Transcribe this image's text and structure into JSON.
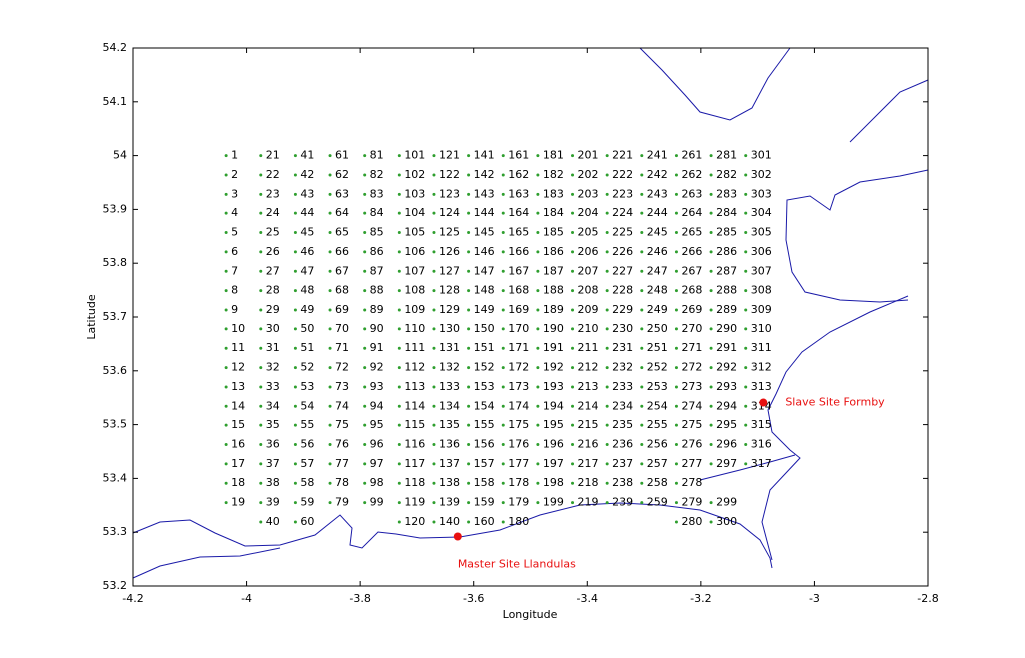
{
  "chart_data": {
    "type": "scatter",
    "x_label": "Longitude",
    "y_label": "Latitude",
    "xlim": [
      -4.2,
      -2.8
    ],
    "xticks": [
      -4.2,
      -4,
      -3.8,
      -3.6,
      -3.4,
      -3.2,
      -3,
      -2.8
    ],
    "ylim": [
      53.2,
      54.2
    ],
    "yticks": [
      53.2,
      53.3,
      53.4,
      53.5,
      53.6,
      53.7,
      53.8,
      53.9,
      54,
      54.1,
      54.2
    ],
    "point_color": "#2e9e2e",
    "label_color": "#000000",
    "site_color": "#e81010",
    "coast_color": "#1a1aa8",
    "lons": [
      -4.036,
      -3.975,
      -3.914,
      -3.853,
      -3.792,
      -3.731,
      -3.67,
      -3.609,
      -3.548,
      -3.487,
      -3.426,
      -3.365,
      -3.304,
      -3.243,
      -3.182,
      -3.121
    ],
    "lats": [
      54.0,
      53.964,
      53.928,
      53.893,
      53.857,
      53.821,
      53.785,
      53.749,
      53.713,
      53.678,
      53.642,
      53.606,
      53.57,
      53.534,
      53.499,
      53.463,
      53.427,
      53.391,
      53.355,
      53.319
    ],
    "point_labels": [
      [
        1,
        2,
        3,
        4,
        5,
        6,
        7,
        8,
        9,
        10,
        11,
        12,
        13,
        14,
        15,
        16,
        17,
        18,
        19,
        null
      ],
      [
        21,
        22,
        23,
        24,
        25,
        26,
        27,
        28,
        29,
        30,
        31,
        32,
        33,
        34,
        35,
        36,
        37,
        38,
        39,
        40
      ],
      [
        41,
        42,
        43,
        44,
        45,
        46,
        47,
        48,
        49,
        50,
        51,
        52,
        53,
        54,
        55,
        56,
        57,
        58,
        59,
        60
      ],
      [
        61,
        62,
        63,
        64,
        65,
        66,
        67,
        68,
        69,
        70,
        71,
        72,
        73,
        74,
        75,
        76,
        77,
        78,
        79,
        null
      ],
      [
        81,
        82,
        83,
        84,
        85,
        86,
        87,
        88,
        89,
        90,
        91,
        92,
        93,
        94,
        95,
        96,
        97,
        98,
        99,
        null
      ],
      [
        101,
        102,
        103,
        104,
        105,
        106,
        107,
        108,
        109,
        110,
        111,
        112,
        113,
        114,
        115,
        116,
        117,
        118,
        119,
        120
      ],
      [
        121,
        122,
        123,
        124,
        125,
        126,
        127,
        128,
        129,
        130,
        131,
        132,
        133,
        134,
        135,
        136,
        137,
        138,
        139,
        140
      ],
      [
        141,
        142,
        143,
        144,
        145,
        146,
        147,
        148,
        149,
        150,
        151,
        152,
        153,
        154,
        155,
        156,
        157,
        158,
        159,
        160
      ],
      [
        161,
        162,
        163,
        164,
        165,
        166,
        167,
        168,
        169,
        170,
        171,
        172,
        173,
        174,
        175,
        176,
        177,
        178,
        179,
        180
      ],
      [
        181,
        182,
        183,
        184,
        185,
        186,
        187,
        188,
        189,
        190,
        191,
        192,
        193,
        194,
        195,
        196,
        197,
        198,
        199,
        null
      ],
      [
        201,
        202,
        203,
        204,
        205,
        206,
        207,
        208,
        209,
        210,
        211,
        212,
        213,
        214,
        215,
        216,
        217,
        218,
        219,
        null
      ],
      [
        221,
        222,
        223,
        224,
        225,
        226,
        227,
        228,
        229,
        230,
        231,
        232,
        233,
        234,
        235,
        236,
        237,
        238,
        239,
        null
      ],
      [
        241,
        242,
        243,
        244,
        245,
        246,
        247,
        248,
        249,
        250,
        251,
        252,
        253,
        254,
        255,
        256,
        257,
        258,
        259,
        null
      ],
      [
        261,
        262,
        263,
        264,
        265,
        266,
        267,
        268,
        269,
        270,
        271,
        272,
        273,
        274,
        275,
        276,
        277,
        278,
        279,
        280
      ],
      [
        281,
        282,
        283,
        284,
        285,
        286,
        287,
        288,
        289,
        290,
        291,
        292,
        293,
        294,
        295,
        296,
        297,
        null,
        299,
        300
      ],
      [
        301,
        302,
        303,
        304,
        305,
        306,
        307,
        308,
        309,
        310,
        311,
        312,
        313,
        314,
        315,
        316,
        317,
        null,
        null,
        null
      ]
    ],
    "sites": [
      {
        "name": "Master Site Llandulas",
        "x": -3.628,
        "y": 53.292
      },
      {
        "name": "Slave Site Formby",
        "x": -3.09,
        "y": 53.541
      }
    ]
  }
}
